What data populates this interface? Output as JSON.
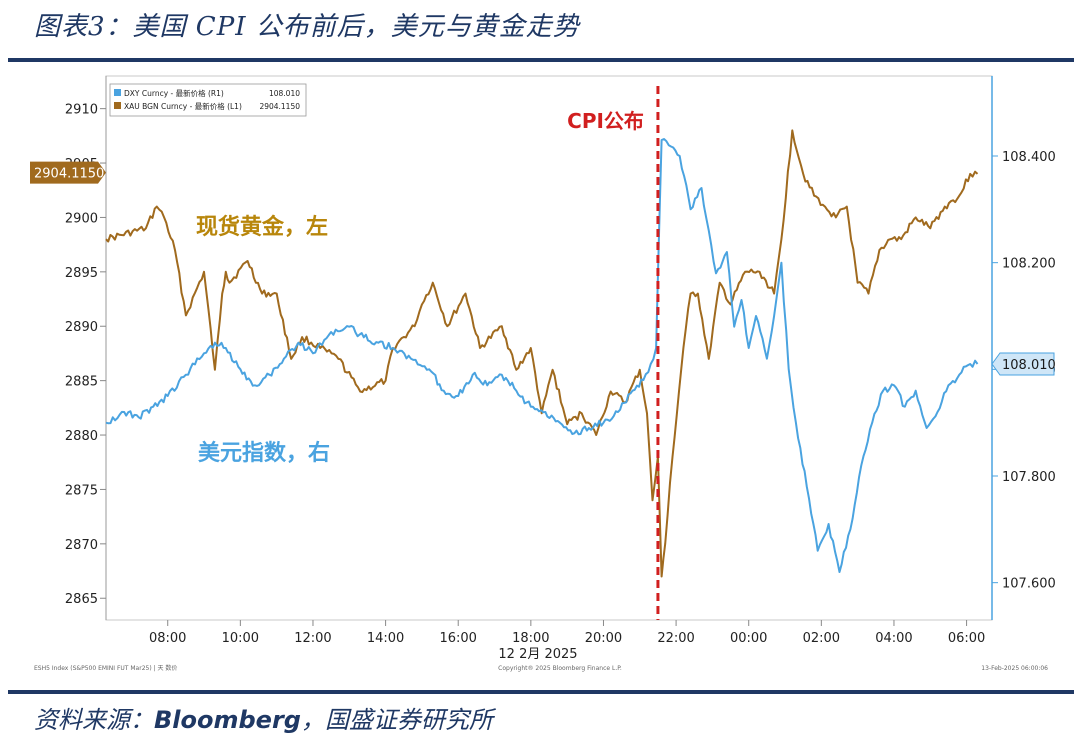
{
  "header": {
    "title": "图表3：美国 CPI 公布前后，美元与黄金走势"
  },
  "source": {
    "prefix": "资料来源：",
    "brand": "Bloomberg",
    "suffix": "，国盛证券研究所"
  },
  "colors": {
    "gold": "#a06a1e",
    "dxy": "#4aa3e0",
    "event_line": "#d11f1f",
    "gold_label_text": "#b8860b",
    "dxy_label_text": "#4aa3e0",
    "event_label_text": "#d11f1f",
    "navy": "#1f3864"
  },
  "chart_data": {
    "type": "line",
    "xlabel": "12 2月 2025",
    "x_ticks": [
      "08:00",
      "10:00",
      "12:00",
      "14:00",
      "16:00",
      "18:00",
      "20:00",
      "22:00",
      "00:00",
      "02:00",
      "04:00",
      "06:00"
    ],
    "x_range_hours": [
      6.3,
      30.7
    ],
    "y_left": {
      "ticks": [
        2865,
        2870,
        2875,
        2880,
        2885,
        2890,
        2895,
        2900,
        2905,
        2910
      ],
      "range": [
        2863,
        2913
      ]
    },
    "y_right": {
      "ticks": [
        "107.600",
        "107.800",
        "108.000",
        "108.200",
        "108.400"
      ],
      "range": [
        107.53,
        108.55
      ]
    },
    "legend": {
      "placement": "top-left",
      "entries": [
        {
          "label": "DXY Curncy - 最新价格 (R1)",
          "value": "108.010",
          "color": "#4aa3e0"
        },
        {
          "label": "XAU BGN Curncy - 最新价格 (L1)",
          "value": "2904.1150",
          "color": "#a06a1e"
        }
      ]
    },
    "last_value_tags": {
      "left": "2904.1150",
      "right": "108.010"
    },
    "annotations": {
      "event": "CPI公布",
      "event_time_hours": 21.5,
      "gold_label": "现货黄金，左",
      "dxy_label": "美元指数，右"
    },
    "footer": {
      "left": "ESH5 Index (S&P500 EMINI FUT Mar25) | 天 数价",
      "center": "Copyright® 2025 Bloomberg Finance L.P.",
      "right": "13-Feb-2025 06:00:06"
    },
    "series": [
      {
        "name": "XAU BGN Curncy",
        "axis": "left",
        "x": [
          6.3,
          7.4,
          7.7,
          7.9,
          8.2,
          8.5,
          9.0,
          9.3,
          9.5,
          9.6,
          9.7,
          10.2,
          10.6,
          11.0,
          11.4,
          11.7,
          12.2,
          12.7,
          13.3,
          14.0,
          14.2,
          14.8,
          15.0,
          15.3,
          15.7,
          16.2,
          16.6,
          17.2,
          17.6,
          18.0,
          18.3,
          18.6,
          19.0,
          19.4,
          19.8,
          20.2,
          20.6,
          21.0,
          21.2,
          21.35,
          21.5,
          21.6,
          21.7,
          21.9,
          22.2,
          22.4,
          22.6,
          22.9,
          23.2,
          23.5,
          23.9,
          24.3,
          24.7,
          24.9,
          25.2,
          25.5,
          25.8,
          26.1,
          26.4,
          26.7,
          27.0,
          27.3,
          27.6,
          27.9,
          28.2,
          28.6,
          29.0,
          29.4,
          29.8,
          30.1,
          30.3
        ],
        "values": [
          2898,
          2899,
          2901,
          2900,
          2897,
          2891,
          2895,
          2886,
          2893,
          2895,
          2894,
          2896,
          2893,
          2893,
          2887,
          2889,
          2888,
          2887,
          2884,
          2885,
          2888,
          2890,
          2892,
          2894,
          2890,
          2893,
          2888,
          2890,
          2886,
          2888,
          2882,
          2886,
          2881,
          2882,
          2880,
          2884,
          2883,
          2886,
          2882,
          2874,
          2878,
          2867,
          2870,
          2878,
          2888,
          2893,
          2893,
          2887,
          2894,
          2892,
          2895,
          2895,
          2893,
          2898,
          2908,
          2904,
          2902,
          2901,
          2900,
          2901,
          2894,
          2893,
          2897,
          2898,
          2898,
          2900,
          2899,
          2901,
          2902,
          2904,
          2904
        ]
      },
      {
        "name": "DXY Curncy",
        "axis": "right",
        "x": [
          6.3,
          6.8,
          7.2,
          7.6,
          8.0,
          8.5,
          9.0,
          9.3,
          9.6,
          10.0,
          10.4,
          10.8,
          11.2,
          11.6,
          12.0,
          12.5,
          13.0,
          13.4,
          13.8,
          14.2,
          14.7,
          15.2,
          15.6,
          16.0,
          16.4,
          16.8,
          17.2,
          17.6,
          18.0,
          18.4,
          18.8,
          19.2,
          19.6,
          20.0,
          20.4,
          20.8,
          21.1,
          21.3,
          21.45,
          21.6,
          21.8,
          22.1,
          22.4,
          22.7,
          22.9,
          23.1,
          23.4,
          23.6,
          23.8,
          24.0,
          24.2,
          24.5,
          24.7,
          24.9,
          25.1,
          25.3,
          25.6,
          25.9,
          26.2,
          26.5,
          26.8,
          27.1,
          27.4,
          27.7,
          28.0,
          28.3,
          28.6,
          28.9,
          29.2,
          29.5,
          29.8,
          30.1,
          30.3
        ],
        "values": [
          107.9,
          107.92,
          107.91,
          107.93,
          107.95,
          107.99,
          108.03,
          108.05,
          108.04,
          108.0,
          107.97,
          107.99,
          108.02,
          108.05,
          108.03,
          108.07,
          108.08,
          108.06,
          108.05,
          108.04,
          108.02,
          108.0,
          107.96,
          107.95,
          107.99,
          107.97,
          107.99,
          107.96,
          107.93,
          107.92,
          107.9,
          107.88,
          107.89,
          107.9,
          107.92,
          107.96,
          107.98,
          108.01,
          108.04,
          108.43,
          108.42,
          108.4,
          108.3,
          108.34,
          108.26,
          108.18,
          108.22,
          108.08,
          108.13,
          108.04,
          108.1,
          108.02,
          108.1,
          108.2,
          108.0,
          107.9,
          107.78,
          107.66,
          107.71,
          107.62,
          107.7,
          107.82,
          107.9,
          107.96,
          107.97,
          107.93,
          107.96,
          107.89,
          107.92,
          107.97,
          107.99,
          108.01,
          108.01
        ]
      }
    ]
  }
}
